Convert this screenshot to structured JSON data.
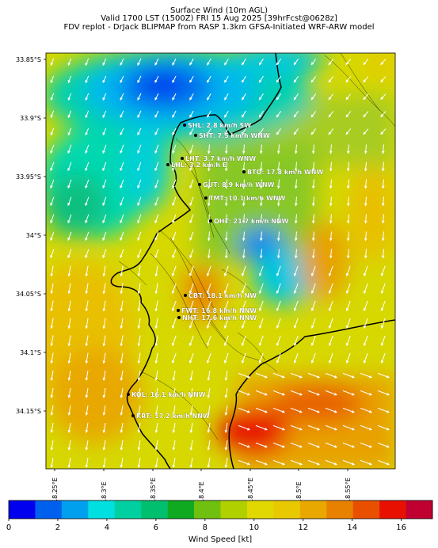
{
  "header": {
    "line1": "Surface Wind (10m AGL)",
    "line2": "Valid 1700 LST (1500Z) FRI 15 Aug 2025 [39hrFcst@0628z]",
    "line3": "FDV replot - DrJack BLIPMAP from RASP 1.3km GFSA-Initiated WRF-ARW model"
  },
  "map": {
    "lat_ticks": [
      "33.85°S",
      "33.9°S",
      "33.95°S",
      "34°S",
      "34.05°S",
      "34.1°S",
      "34.15°S"
    ],
    "lon_ticks": [
      "18.25°E",
      "18.3°E",
      "18.35°E",
      "18.4°E",
      "18.45°E",
      "18.5°E",
      "18.55°E"
    ],
    "stations": [
      {
        "code": "SHL",
        "label": "SHL: 2.8 km/h SW"
      },
      {
        "code": "SHT",
        "label": "SHT: 7.5 km/h WNW"
      },
      {
        "code": "LHT",
        "label": "LHT: 3.7 km/h WNW"
      },
      {
        "code": "LHL",
        "label": "LHL: 3.2 km/h E"
      },
      {
        "code": "BTO",
        "label": "BTO: 17.8 km/h WNW"
      },
      {
        "code": "GUT",
        "label": "GUT: 8.9 km/h WNW"
      },
      {
        "code": "TMT",
        "label": "TMT: 10.1 km/h WNW"
      },
      {
        "code": "OHT",
        "label": "OHT: 21.7 km/h NNW"
      },
      {
        "code": "CBT",
        "label": "CBT: 18.1 km/h NW"
      },
      {
        "code": "FWT",
        "label": "FWT: 16.8 km/h NNW"
      },
      {
        "code": "NHT",
        "label": "NHT: 17.6 km/h NNW"
      },
      {
        "code": "KOL",
        "label": "KOL: 16.1 km/h NNW"
      },
      {
        "code": "KRT",
        "label": "KRT: 17.2 km/h NNW"
      }
    ]
  },
  "colorbar": {
    "title": "Wind Speed [kt]",
    "ticks": [
      "0",
      "2",
      "4",
      "6",
      "8",
      "10",
      "12",
      "14",
      "16"
    ],
    "colors": [
      "#0000ee",
      "#0060ee",
      "#00a0ee",
      "#00e0e0",
      "#00d0a0",
      "#00c070",
      "#10aa20",
      "#70c010",
      "#b0d000",
      "#e0d800",
      "#e8c800",
      "#e8a800",
      "#e88000",
      "#e85000",
      "#e81000",
      "#c00030"
    ]
  }
}
